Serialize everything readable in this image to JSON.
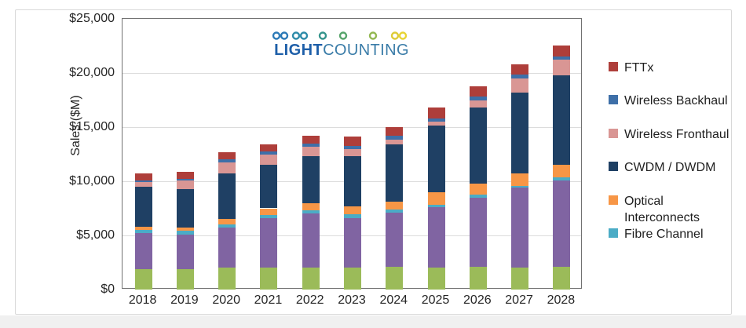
{
  "logo": {
    "brand_bold": "LIGHT",
    "brand_regular": "COUNTING",
    "brand_bold_color": "#1e5fa9",
    "brand_regular_color": "#3a7ca8",
    "beads": [
      {
        "x": 12,
        "color": "#2c7ab7"
      },
      {
        "x": 22,
        "color": "#2c7ab7"
      },
      {
        "x": 37,
        "color": "#2e8ba9"
      },
      {
        "x": 47,
        "color": "#2e8ba9"
      },
      {
        "x": 71,
        "color": "#35948c"
      },
      {
        "x": 97,
        "color": "#57a46b"
      },
      {
        "x": 135,
        "color": "#93b751"
      },
      {
        "x": 163,
        "color": "#decb36"
      },
      {
        "x": 173,
        "color": "#e8d434"
      }
    ],
    "bead_line_gradient": [
      "#2c7ab7",
      "#35948c",
      "#6fac5e",
      "#cfc63a",
      "#e8d434"
    ]
  },
  "chart_data": {
    "type": "bar",
    "stacked": true,
    "title": "",
    "xlabel": "",
    "ylabel": "Sales ($M)",
    "ylim": [
      0,
      25000
    ],
    "ytick_interval": 5000,
    "yticks": [
      {
        "value": 0,
        "label": "$0"
      },
      {
        "value": 5000,
        "label": "$5,000"
      },
      {
        "value": 10000,
        "label": "$10,000"
      },
      {
        "value": 15000,
        "label": "$15,000"
      },
      {
        "value": 20000,
        "label": "$20,000"
      },
      {
        "value": 25000,
        "label": "$25,000"
      }
    ],
    "grid": "horizontal",
    "categories": [
      "2018",
      "2019",
      "2020",
      "2021",
      "2022",
      "2023",
      "2024",
      "2025",
      "2026",
      "2027",
      "2028"
    ],
    "series": [
      {
        "name": "Unlabeled green segment",
        "color": "#9bbb59",
        "in_legend": false,
        "values": [
          1900,
          1900,
          2000,
          2000,
          2000,
          2000,
          2100,
          2000,
          2100,
          2000,
          2100
        ]
      },
      {
        "name": "Unlabeled purple segment",
        "color": "#8064a2",
        "in_legend": false,
        "values": [
          3300,
          3200,
          3700,
          4600,
          5000,
          4600,
          5000,
          5600,
          6400,
          7400,
          8000
        ]
      },
      {
        "name": "Fibre Channel",
        "color": "#4bacc6",
        "in_legend": true,
        "values": [
          300,
          300,
          300,
          300,
          300,
          350,
          300,
          250,
          300,
          200,
          250
        ]
      },
      {
        "name": "Optical Interconnects",
        "color": "#f79646",
        "in_legend": true,
        "values": [
          300,
          350,
          550,
          600,
          700,
          700,
          700,
          1100,
          1000,
          1100,
          1200
        ]
      },
      {
        "name": "CWDM / DWDM",
        "color": "#1f4064",
        "in_legend": true,
        "values": [
          3700,
          3500,
          4200,
          4000,
          4300,
          4700,
          5300,
          6200,
          7000,
          7500,
          8200
        ]
      },
      {
        "name": "Wireless Fronthaul",
        "color": "#d99694",
        "in_legend": true,
        "values": [
          400,
          800,
          1000,
          950,
          900,
          600,
          450,
          350,
          650,
          1300,
          1450
        ]
      },
      {
        "name": "Wireless Backhaul",
        "color": "#3e6fa8",
        "in_legend": true,
        "values": [
          200,
          150,
          300,
          300,
          300,
          300,
          350,
          300,
          350,
          350,
          350
        ]
      },
      {
        "name": "FTTx",
        "color": "#ae3e3a",
        "in_legend": true,
        "values": [
          600,
          650,
          600,
          650,
          700,
          850,
          800,
          1000,
          1000,
          950,
          1000
        ]
      }
    ],
    "legend": {
      "position": "right",
      "items": [
        {
          "label": "FTTx",
          "color": "#ae3e3a"
        },
        {
          "label": "Wireless Backhaul",
          "color": "#3e6fa8"
        },
        {
          "label": "Wireless Fronthaul",
          "color": "#d99694"
        },
        {
          "label": "CWDM / DWDM",
          "color": "#1f4064"
        },
        {
          "label": "Optical\nInterconnects",
          "color": "#f79646"
        },
        {
          "label": "Fibre Channel",
          "color": "#4bacc6"
        }
      ]
    }
  },
  "colors": {
    "grid": "#dcdcdc",
    "plot_border": "#717171",
    "axis_text": "#262626",
    "frame_border": "#d8d8d8",
    "bottom_strip": "#f0f0f0"
  }
}
